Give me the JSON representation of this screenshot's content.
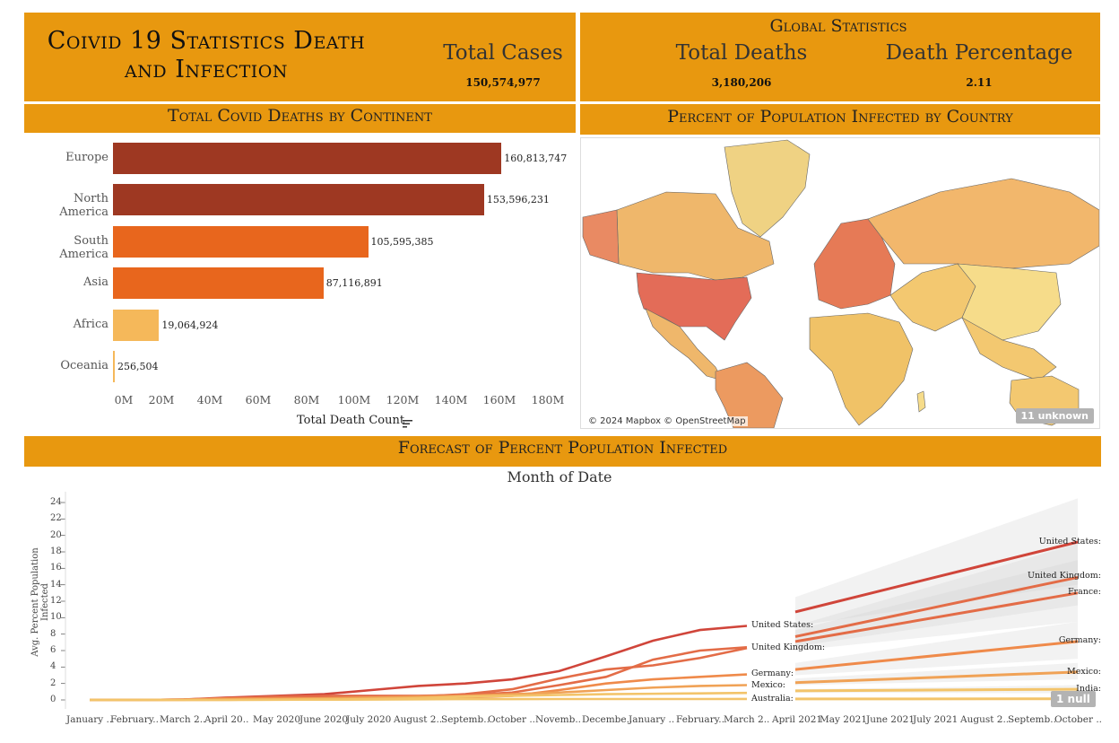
{
  "header": {
    "title": "Coivid 19 Statistics Death and Infection",
    "global_heading": "Global Statistics",
    "stats": [
      {
        "label": "Total Cases",
        "value": "150,574,977"
      },
      {
        "label": "Total Deaths",
        "value": "3,180,206"
      },
      {
        "label": "Death Percentage",
        "value": "2.11"
      }
    ]
  },
  "panels": {
    "deaths_title": "Total Covid Deaths by Continent",
    "map_title": "Percent of Population Infected by Country",
    "forecast_title": "Forecast of Percent Population Infected"
  },
  "colors": {
    "band": "#e8980f",
    "bar_dark": "#9e3822",
    "bar_mid": "#e8661d",
    "bar_light": "#f5b85a",
    "line_us": "#d0453a",
    "line_orange": "#ef8a4a",
    "line_light": "#f3c46a"
  },
  "chart_data": [
    {
      "type": "bar",
      "orientation": "horizontal",
      "categories": [
        "Europe",
        "North America",
        "South America",
        "Asia",
        "Africa",
        "Oceania"
      ],
      "values": [
        160813747,
        153596231,
        105595385,
        87116891,
        19064924,
        256504
      ],
      "value_labels": [
        "160,813,747",
        "153,596,231",
        "105,595,385",
        "87,116,891",
        "19,064,924",
        "256,504"
      ],
      "xlabel": "Total Death Count",
      "xticks": [
        "0M",
        "20M",
        "40M",
        "60M",
        "80M",
        "100M",
        "120M",
        "140M",
        "160M",
        "180M"
      ],
      "xlim": [
        0,
        180000000
      ]
    },
    {
      "type": "line",
      "title": "Month of Date",
      "ylabel": "Avg. Percent Population Infected",
      "ylim": [
        0,
        24
      ],
      "yticks": [
        "0",
        "2",
        "4",
        "6",
        "8",
        "10",
        "12",
        "14",
        "16",
        "18",
        "20",
        "22",
        "24"
      ],
      "x": [
        "January ..",
        "February..",
        "March 2..",
        "April 20..",
        "May 2020",
        "June 2020",
        "July 2020",
        "August 2..",
        "Septemb..",
        "October ..",
        "Novemb..",
        "Decembe..",
        "January ..",
        "February..",
        "March 2..",
        "April 2021",
        "May 2021",
        "June 2021",
        "July 2021",
        "August 2..",
        "Septemb..",
        "October .."
      ],
      "actual_series": [
        {
          "name": "United States:",
          "values": [
            0,
            0,
            0.05,
            0.3,
            0.5,
            0.7,
            1.2,
            1.7,
            2.0,
            2.5,
            3.5,
            5.3,
            7.2,
            8.5,
            9.0
          ]
        },
        {
          "name": "United Kingdom:",
          "values": [
            0,
            0,
            0.05,
            0.2,
            0.4,
            0.5,
            0.5,
            0.5,
            0.6,
            0.9,
            1.8,
            2.8,
            4.9,
            6.0,
            6.4
          ]
        },
        {
          "name": "France:",
          "values": [
            0,
            0,
            0.05,
            0.2,
            0.3,
            0.3,
            0.3,
            0.4,
            0.7,
            1.3,
            2.6,
            3.7,
            4.2,
            5.1,
            6.3
          ]
        },
        {
          "name": "Germany:",
          "values": [
            0,
            0,
            0.02,
            0.2,
            0.2,
            0.2,
            0.3,
            0.3,
            0.3,
            0.5,
            1.2,
            2.0,
            2.5,
            2.8,
            3.1
          ]
        },
        {
          "name": "Mexico:",
          "values": [
            0,
            0,
            0,
            0.02,
            0.1,
            0.2,
            0.3,
            0.4,
            0.5,
            0.7,
            0.9,
            1.2,
            1.5,
            1.7,
            1.8
          ]
        },
        {
          "name": "India:",
          "values": [
            0,
            0,
            0,
            0,
            0.02,
            0.05,
            0.1,
            0.2,
            0.4,
            0.5,
            0.6,
            0.7,
            0.75,
            0.8,
            0.85
          ]
        },
        {
          "name": "Australia:",
          "values": [
            0,
            0,
            0.01,
            0.02,
            0.03,
            0.03,
            0.05,
            0.08,
            0.1,
            0.1,
            0.11,
            0.11,
            0.11,
            0.11,
            0.12
          ]
        }
      ],
      "forecast_series": [
        {
          "name": "United States:",
          "values": [
            10.7,
            19.2
          ],
          "band": [
            [
              9.0,
              12.5
            ],
            [
              14.0,
              24.5
            ]
          ]
        },
        {
          "name": "United Kingdom:",
          "values": [
            7.7,
            14.9
          ],
          "band": [
            [
              6.5,
              9.0
            ],
            [
              11.5,
              19.0
            ]
          ]
        },
        {
          "name": "France:",
          "values": [
            7.1,
            13.0
          ],
          "band": [
            [
              6.0,
              8.5
            ],
            [
              9.5,
              17.0
            ]
          ]
        },
        {
          "name": "Germany:",
          "values": [
            3.7,
            7.1
          ],
          "band": [
            [
              3.0,
              4.5
            ],
            [
              5.0,
              9.5
            ]
          ]
        },
        {
          "name": "Mexico:",
          "values": [
            2.1,
            3.4
          ],
          "band": [
            [
              1.8,
              2.6
            ],
            [
              2.5,
              4.5
            ]
          ]
        },
        {
          "name": "India:",
          "values": [
            1.1,
            1.3
          ],
          "band": [
            [
              0.9,
              1.3
            ],
            [
              0.8,
              1.8
            ]
          ]
        },
        {
          "name": "Australia:",
          "values": [
            0.12,
            0.14
          ],
          "band": [
            [
              0.05,
              0.2
            ],
            [
              0.0,
              0.3
            ]
          ]
        }
      ],
      "null_badge": "1 null"
    }
  ],
  "map": {
    "credit": "© 2024 Mapbox © OpenStreetMap",
    "unknown_badge": "11 unknown"
  }
}
